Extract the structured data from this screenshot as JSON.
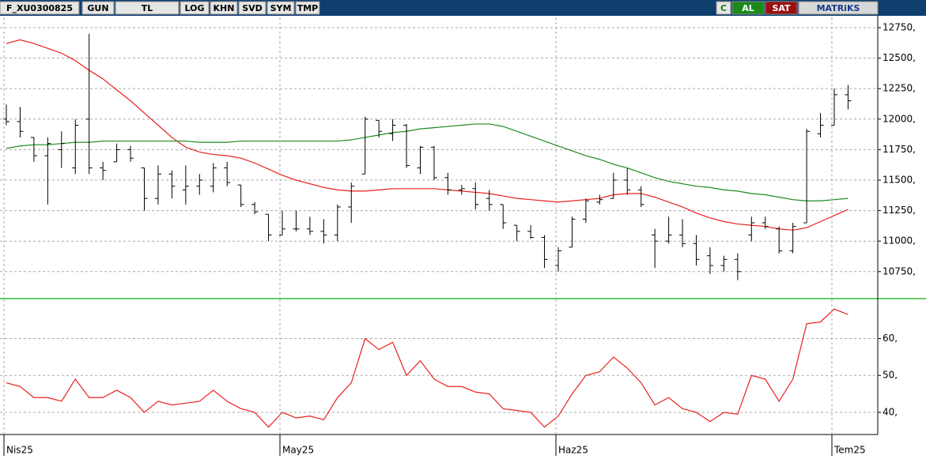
{
  "toolbar": {
    "symbol": "F_XU0300825",
    "buttons": [
      "GUN",
      "TL",
      "LOG",
      "KHN",
      "SVD",
      "SYM",
      "TMP"
    ],
    "right": [
      "C",
      "AL",
      "SAT",
      "MATRiKS"
    ]
  },
  "chart_data": [
    {
      "type": "ohlc",
      "color": "#000000",
      "grid": true,
      "ylim": [
        10535,
        12834
      ],
      "yticks": [
        {
          "value": 10750,
          "label": "10750,"
        },
        {
          "value": 11000,
          "label": "11000,"
        },
        {
          "value": 11250,
          "label": "11250,"
        },
        {
          "value": 11500,
          "label": "11500,"
        },
        {
          "value": 11750,
          "label": "11750,"
        },
        {
          "value": 12000,
          "label": "12000,"
        },
        {
          "value": 12250,
          "label": "12250,"
        },
        {
          "value": 12500,
          "label": "12500,"
        },
        {
          "value": 12750,
          "label": "12750,"
        }
      ],
      "open": [
        12000,
        11980,
        11850,
        11700,
        11750,
        11600,
        12000,
        11600,
        11650,
        11750,
        11600,
        11350,
        11550,
        11420,
        11450,
        11450,
        11600,
        11460,
        11300,
        11220,
        11050,
        11100,
        11100,
        11080,
        11050,
        11280,
        11550,
        11990,
        11880,
        11950,
        11600,
        11770,
        11520,
        11420,
        11430,
        11350,
        11300,
        11130,
        11080,
        11030,
        10800,
        10950,
        11180,
        11320,
        11350,
        11500,
        11420,
        11050,
        11000,
        11050,
        10980,
        10880,
        10800,
        10850,
        11050,
        11150,
        11100,
        10920,
        11150,
        11880,
        11950,
        12200
      ],
      "high": [
        12120,
        12100,
        11850,
        11850,
        11900,
        12000,
        12700,
        11650,
        11800,
        11780,
        11600,
        11620,
        11580,
        11620,
        11550,
        11640,
        11650,
        11460,
        11320,
        11220,
        11250,
        11250,
        11200,
        11180,
        11300,
        11480,
        12020,
        11990,
        12000,
        11960,
        11780,
        11780,
        11560,
        11460,
        11480,
        11420,
        11300,
        11130,
        11130,
        11050,
        10950,
        11200,
        11350,
        11380,
        11560,
        11600,
        11450,
        11100,
        11200,
        11180,
        11050,
        10950,
        10880,
        10900,
        11200,
        11200,
        11120,
        11150,
        11920,
        12050,
        12250,
        12280
      ],
      "low": [
        11950,
        11850,
        11650,
        11300,
        11600,
        11550,
        11550,
        11500,
        11650,
        11650,
        11250,
        11300,
        11350,
        11300,
        11380,
        11400,
        11450,
        11280,
        11220,
        11000,
        11050,
        11080,
        11050,
        10980,
        11000,
        11150,
        11550,
        11850,
        11820,
        11600,
        11550,
        11500,
        11380,
        11380,
        11260,
        11250,
        11100,
        11000,
        11020,
        10780,
        10750,
        10950,
        11150,
        11300,
        11350,
        11380,
        11280,
        10780,
        10980,
        10950,
        10800,
        10730,
        10750,
        10680,
        11000,
        11100,
        10900,
        10900,
        11150,
        11850,
        11950,
        12080
      ],
      "close": [
        11980,
        11900,
        11700,
        11800,
        11800,
        11950,
        11600,
        11580,
        11750,
        11680,
        11350,
        11550,
        11450,
        11450,
        11500,
        11600,
        11480,
        11300,
        11240,
        11050,
        11100,
        11100,
        11080,
        11050,
        11280,
        11450,
        12000,
        11900,
        11950,
        11620,
        11770,
        11520,
        11420,
        11430,
        11300,
        11300,
        11150,
        11080,
        11030,
        10850,
        10920,
        11180,
        11330,
        11340,
        11500,
        11420,
        11300,
        11000,
        11050,
        10980,
        10850,
        10800,
        10850,
        10750,
        11150,
        11120,
        10920,
        11120,
        11900,
        11950,
        12200,
        12150
      ],
      "series": [
        {
          "color": "#e8221f",
          "values": [
            12620,
            12650,
            12620,
            12580,
            12540,
            12480,
            12400,
            12330,
            12240,
            12150,
            12050,
            11950,
            11850,
            11770,
            11730,
            11710,
            11700,
            11680,
            11640,
            11590,
            11540,
            11500,
            11470,
            11440,
            11420,
            11410,
            11410,
            11420,
            11430,
            11430,
            11430,
            11430,
            11420,
            11410,
            11400,
            11390,
            11370,
            11350,
            11340,
            11330,
            11320,
            11330,
            11340,
            11350,
            11380,
            11390,
            11390,
            11360,
            11320,
            11280,
            11230,
            11190,
            11160,
            11140,
            11130,
            11120,
            11100,
            11090,
            11110,
            11160,
            11210,
            11260
          ]
        },
        {
          "color": "#1f8a1f",
          "values": [
            11760,
            11780,
            11790,
            11790,
            11800,
            11810,
            11810,
            11820,
            11820,
            11820,
            11820,
            11820,
            11820,
            11820,
            11810,
            11810,
            11810,
            11820,
            11820,
            11820,
            11820,
            11820,
            11820,
            11820,
            11820,
            11830,
            11850,
            11870,
            11890,
            11900,
            11920,
            11930,
            11940,
            11950,
            11960,
            11960,
            11940,
            11900,
            11860,
            11820,
            11780,
            11740,
            11700,
            11670,
            11630,
            11600,
            11560,
            11520,
            11490,
            11470,
            11450,
            11440,
            11420,
            11410,
            11390,
            11380,
            11360,
            11340,
            11330,
            11330,
            11340,
            11350
          ]
        }
      ]
    },
    {
      "type": "line",
      "grid": true,
      "ylim": [
        34,
        70.6
      ],
      "yticks": [
        {
          "value": 40,
          "label": "40,"
        },
        {
          "value": 50,
          "label": "50,"
        },
        {
          "value": 60,
          "label": "60,"
        }
      ],
      "categories": [
        "Nis25",
        null,
        null,
        null,
        null,
        null,
        null,
        null,
        null,
        null,
        null,
        null,
        null,
        null,
        null,
        null,
        null,
        null,
        null,
        null,
        "May25",
        null,
        null,
        null,
        null,
        null,
        null,
        null,
        null,
        null,
        null,
        null,
        null,
        null,
        null,
        null,
        null,
        null,
        null,
        null,
        "Haz25",
        null,
        null,
        null,
        null,
        null,
        null,
        null,
        null,
        null,
        null,
        null,
        null,
        null,
        null,
        null,
        null,
        null,
        null,
        null,
        "Tem25",
        null
      ],
      "series": [
        {
          "color": "#e8221f",
          "values": [
            48,
            47,
            44,
            44,
            43,
            49,
            44,
            44,
            46,
            44,
            40,
            43,
            42,
            42.5,
            43,
            46,
            43,
            41,
            40,
            36,
            40,
            38.5,
            39,
            38,
            44,
            48,
            60,
            57,
            59,
            50,
            54,
            49,
            47,
            47,
            45.5,
            45,
            41,
            40.5,
            40,
            36,
            39,
            45,
            50,
            51,
            55,
            52,
            48,
            42,
            44,
            41,
            40,
            37.5,
            40,
            39.5,
            50,
            49,
            43,
            49,
            64,
            64.5,
            68,
            66.5
          ]
        }
      ]
    }
  ]
}
